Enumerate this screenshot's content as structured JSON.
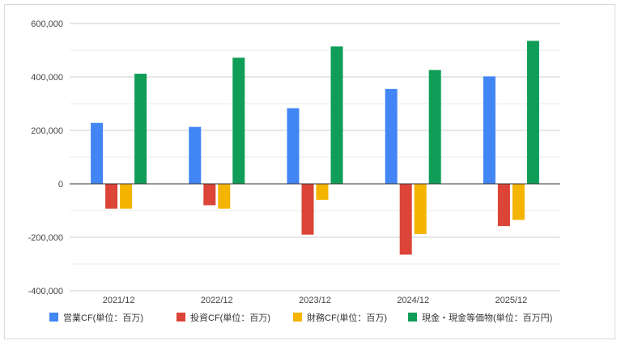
{
  "chart_data": {
    "type": "bar",
    "title": "",
    "xlabel": "",
    "ylabel": "",
    "categories": [
      "2021/12",
      "2022/12",
      "2023/12",
      "2024/12",
      "2025/12"
    ],
    "ylim": [
      -400000,
      600000
    ],
    "y_ticks": [
      600000,
      400000,
      200000,
      0,
      -200000,
      -400000
    ],
    "y_tick_labels": [
      "600,000",
      "400,000",
      "200,000",
      "0",
      "-200,000",
      "-400,000"
    ],
    "grid": true,
    "legend_position": "bottom",
    "series": [
      {
        "name": "営業CF(単位：百万)",
        "color": "#4285f4",
        "values": [
          228000,
          213000,
          283000,
          355000,
          402000
        ]
      },
      {
        "name": "投資CF(単位：百万)",
        "color": "#db4437",
        "values": [
          -93000,
          -80000,
          -190000,
          -265000,
          -158000
        ]
      },
      {
        "name": "財務CF(単位：百万)",
        "color": "#f4b400",
        "values": [
          -93000,
          -93000,
          -60000,
          -188000,
          -135000
        ]
      },
      {
        "name": "現金・現金等価物(単位：百万円)",
        "color": "#0f9d58",
        "values": [
          412000,
          472000,
          514000,
          426000,
          535000
        ]
      }
    ]
  }
}
